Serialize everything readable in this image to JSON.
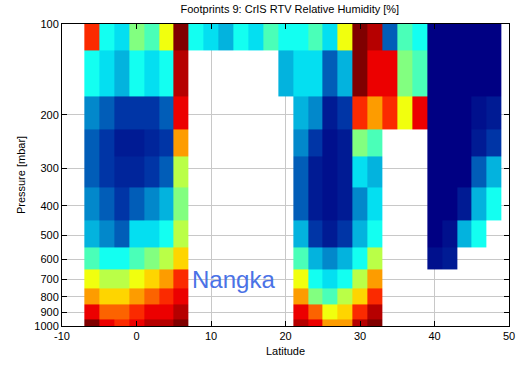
{
  "chart_data": {
    "type": "heatmap",
    "title": "Footprints 9: CrIS RTV Relative Humidity [%]",
    "x_label": "Latitude",
    "y_label": "Pressure [mbar]",
    "x": [
      -6,
      -4,
      -2,
      0,
      2,
      4,
      6,
      8,
      10,
      12,
      14,
      16,
      18,
      20,
      22,
      24,
      26,
      28,
      30,
      32,
      34,
      36,
      38,
      40,
      42,
      44,
      46,
      48
    ],
    "y": [
      100,
      150,
      200,
      250,
      300,
      400,
      500,
      600,
      700,
      800,
      900,
      1000
    ],
    "z": [
      [
        80,
        40,
        35,
        50,
        45,
        60,
        95,
        40,
        35,
        30,
        40,
        35,
        45,
        40,
        40,
        45,
        35,
        60,
        95,
        90,
        20,
        45,
        40,
        5,
        5,
        5,
        5,
        5
      ],
      [
        40,
        35,
        30,
        40,
        35,
        40,
        90,
        null,
        null,
        null,
        null,
        null,
        null,
        30,
        35,
        35,
        20,
        30,
        95,
        85,
        85,
        50,
        45,
        5,
        5,
        5,
        5,
        5
      ],
      [
        25,
        20,
        15,
        15,
        15,
        20,
        85,
        null,
        null,
        null,
        null,
        null,
        null,
        null,
        30,
        25,
        10,
        15,
        80,
        70,
        80,
        60,
        85,
        5,
        5,
        5,
        8,
        10
      ],
      [
        20,
        15,
        10,
        10,
        12,
        15,
        70,
        null,
        null,
        null,
        null,
        null,
        null,
        null,
        25,
        15,
        8,
        10,
        50,
        45,
        null,
        null,
        null,
        5,
        5,
        5,
        10,
        15
      ],
      [
        20,
        15,
        12,
        12,
        15,
        20,
        55,
        null,
        null,
        null,
        null,
        null,
        null,
        null,
        20,
        10,
        8,
        10,
        35,
        30,
        null,
        null,
        null,
        5,
        5,
        5,
        20,
        30
      ],
      [
        25,
        20,
        15,
        20,
        25,
        30,
        50,
        null,
        null,
        null,
        null,
        null,
        null,
        null,
        20,
        10,
        8,
        10,
        25,
        35,
        null,
        null,
        null,
        5,
        5,
        10,
        30,
        40
      ],
      [
        30,
        25,
        20,
        35,
        35,
        40,
        55,
        null,
        null,
        null,
        null,
        null,
        null,
        null,
        30,
        15,
        10,
        15,
        30,
        40,
        null,
        null,
        null,
        5,
        8,
        30,
        40,
        null
      ],
      [
        45,
        40,
        40,
        45,
        50,
        55,
        65,
        null,
        null,
        null,
        null,
        null,
        null,
        null,
        45,
        30,
        25,
        30,
        40,
        55,
        null,
        null,
        null,
        8,
        10,
        null,
        null,
        null
      ],
      [
        60,
        55,
        55,
        60,
        65,
        70,
        80,
        null,
        null,
        null,
        null,
        null,
        null,
        null,
        60,
        40,
        35,
        40,
        55,
        70,
        null,
        null,
        null,
        null,
        null,
        null,
        null,
        null
      ],
      [
        70,
        65,
        65,
        70,
        75,
        80,
        85,
        null,
        null,
        null,
        null,
        null,
        null,
        null,
        70,
        50,
        45,
        55,
        65,
        80,
        null,
        null,
        null,
        null,
        null,
        null,
        null,
        null
      ],
      [
        85,
        75,
        75,
        80,
        85,
        85,
        90,
        null,
        null,
        null,
        null,
        null,
        null,
        null,
        85,
        75,
        60,
        65,
        80,
        90,
        null,
        null,
        null,
        null,
        null,
        null,
        null,
        null
      ],
      [
        95,
        85,
        80,
        85,
        90,
        90,
        95,
        null,
        null,
        null,
        null,
        null,
        null,
        null,
        90,
        85,
        70,
        70,
        90,
        95,
        null,
        null,
        null,
        null,
        null,
        null,
        null,
        null
      ]
    ],
    "xlim": [
      -10,
      50
    ],
    "xticks": [
      -10,
      0,
      10,
      20,
      30,
      40,
      50
    ],
    "ylim": [
      1000,
      100
    ],
    "yticks": [
      100,
      200,
      300,
      400,
      500,
      600,
      700,
      800,
      900,
      1000
    ],
    "log": "y",
    "grid": true,
    "annotations": [
      {
        "text": "Nangka",
        "x": 13,
        "y": 700,
        "color": "#4a72e6"
      }
    ]
  }
}
